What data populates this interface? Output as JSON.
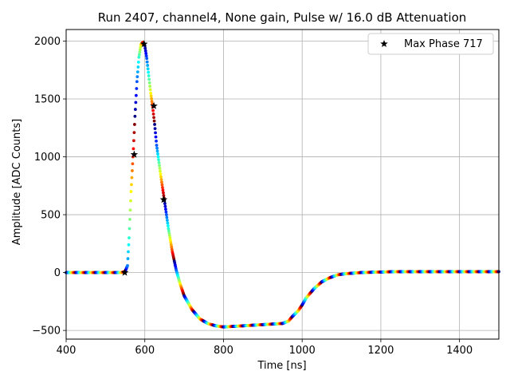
{
  "chart_data": {
    "type": "scatter",
    "title": "Run 2407, channel4, None gain, Pulse w/ 16.0 dB Attenuation",
    "xlabel": "Time [ns]",
    "ylabel": "Amplitude [ADC Counts]",
    "xlim": [
      400,
      1500
    ],
    "ylim": [
      -575,
      2100
    ],
    "xticks": [
      400,
      600,
      800,
      1000,
      1200,
      1400
    ],
    "yticks": [
      -500,
      0,
      500,
      1000,
      1500,
      2000
    ],
    "ytick_labels": [
      "−500",
      "0",
      "500",
      "1000",
      "1500",
      "2000"
    ],
    "grid": true,
    "legend_position": "top-right",
    "waveform": {
      "colormap": "jet",
      "x": [
        400,
        540,
        550,
        556,
        560,
        565,
        570,
        575,
        580,
        585,
        590,
        595,
        600,
        605,
        610,
        615,
        620,
        625,
        630,
        640,
        650,
        660,
        670,
        680,
        690,
        700,
        720,
        740,
        760,
        780,
        800,
        850,
        900,
        950,
        965,
        975,
        990,
        1000,
        1010,
        1030,
        1050,
        1070,
        1090,
        1110,
        1130,
        1150,
        1200,
        1250,
        1300,
        1400,
        1500
      ],
      "y": [
        0,
        0,
        10,
        60,
        300,
        700,
        1000,
        1350,
        1650,
        1860,
        1970,
        1990,
        1960,
        1850,
        1700,
        1550,
        1430,
        1280,
        1100,
        850,
        620,
        380,
        180,
        20,
        -100,
        -200,
        -320,
        -400,
        -440,
        -460,
        -470,
        -460,
        -450,
        -440,
        -420,
        -380,
        -330,
        -280,
        -220,
        -140,
        -80,
        -45,
        -20,
        -10,
        -5,
        0,
        5,
        8,
        8,
        8,
        8
      ]
    },
    "series": [
      {
        "name": "Max Phase 717",
        "marker": "star",
        "color": "#000000",
        "x": [
          549,
          573,
          598,
          623,
          648
        ],
        "y": [
          0,
          1020,
          1975,
          1440,
          630
        ]
      }
    ]
  }
}
